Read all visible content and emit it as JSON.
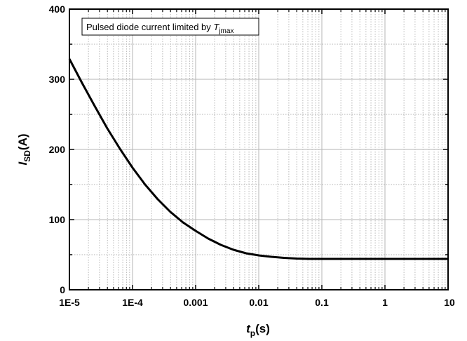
{
  "chart_data": {
    "type": "line",
    "annotation": {
      "text": "Pulsed diode current limited by ",
      "symbol": "T",
      "subscript": "jmax"
    },
    "xlabel": {
      "symbol": "t",
      "subscript": "p",
      "unit": "(s)"
    },
    "ylabel": {
      "symbol": "I",
      "subscript": "SD",
      "unit": "(A)"
    },
    "x_scale": "log",
    "xlim": [
      1e-05,
      10
    ],
    "ylim": [
      0,
      400
    ],
    "x_ticks": [
      {
        "value": 1e-05,
        "label": "1E-5"
      },
      {
        "value": 0.0001,
        "label": "1E-4"
      },
      {
        "value": 0.001,
        "label": "0.001"
      },
      {
        "value": 0.01,
        "label": "0.01"
      },
      {
        "value": 0.1,
        "label": "0.1"
      },
      {
        "value": 1,
        "label": "1"
      },
      {
        "value": 10,
        "label": "10"
      }
    ],
    "y_ticks": [
      {
        "value": 0,
        "label": "0"
      },
      {
        "value": 100,
        "label": "100"
      },
      {
        "value": 200,
        "label": "200"
      },
      {
        "value": 300,
        "label": "300"
      },
      {
        "value": 400,
        "label": "400"
      }
    ],
    "grid": true,
    "series": [
      {
        "color": "#000000",
        "x": [
          1e-05,
          1.58e-05,
          2.51e-05,
          3.98e-05,
          6.31e-05,
          0.0001,
          0.000158,
          0.000251,
          0.000398,
          0.000631,
          0.001,
          0.00158,
          0.00251,
          0.00398,
          0.00631,
          0.01,
          0.0158,
          0.0251,
          0.0398,
          0.0631,
          0.1,
          0.158,
          0.251,
          0.398,
          0.631,
          1,
          10
        ],
        "y": [
          329,
          295,
          262,
          230,
          201,
          174,
          150,
          129,
          111,
          96,
          84,
          73,
          64,
          57,
          52,
          49,
          47,
          45.5,
          44.5,
          44,
          44,
          44,
          44,
          44,
          44,
          44,
          44
        ]
      }
    ]
  }
}
